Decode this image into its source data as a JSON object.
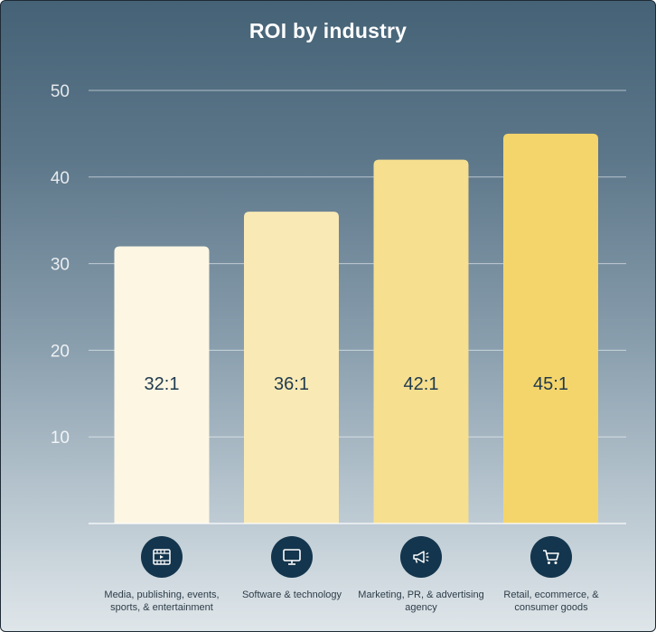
{
  "chart_data": {
    "type": "bar",
    "title": "ROI by industry",
    "categories": [
      "Media, publishing, events, sports, & entertainment",
      "Software & technology",
      "Marketing, PR, & advertising agency",
      "Retail, ecommerce, & consumer goods"
    ],
    "values": [
      32,
      36,
      42,
      45
    ],
    "data_labels": [
      "32:1",
      "36:1",
      "42:1",
      "45:1"
    ],
    "yticks": [
      "10",
      "20",
      "30",
      "40",
      "50"
    ],
    "ylim": [
      0,
      50
    ],
    "grid": true,
    "xlabel": "",
    "ylabel": "",
    "colors": [
      "#fdf6e3",
      "#f9e9b5",
      "#f6df8f",
      "#f4d56b"
    ],
    "icons": [
      "film-icon",
      "monitor-icon",
      "megaphone-icon",
      "cart-icon"
    ]
  }
}
